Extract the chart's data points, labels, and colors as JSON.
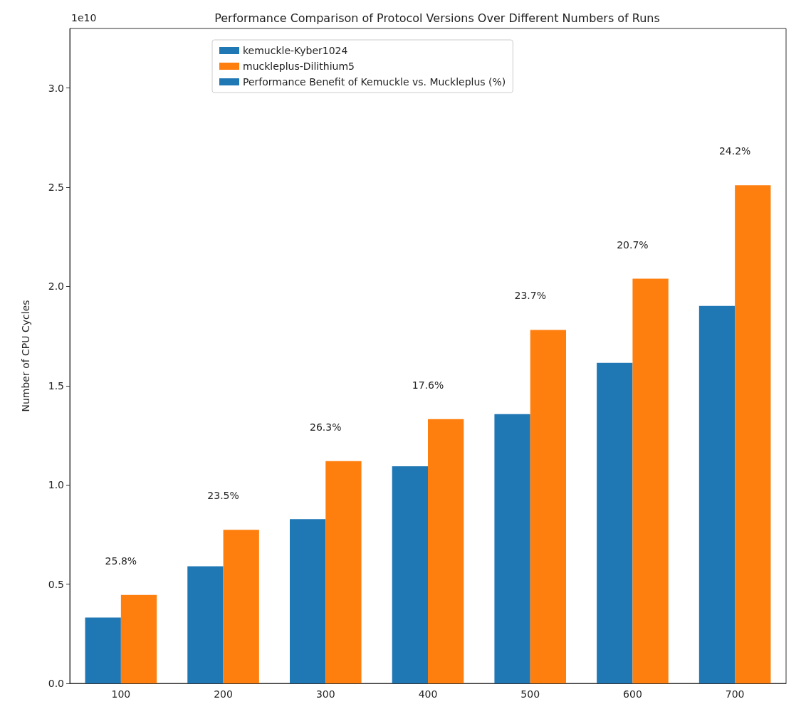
{
  "chart_data": {
    "type": "bar",
    "title": "Performance Comparison of Protocol Versions Over Different Numbers of Runs",
    "ylabel": "Number of CPU Cycles",
    "categories": [
      "100",
      "200",
      "300",
      "400",
      "500",
      "600",
      "700"
    ],
    "series": [
      {
        "name": "kemuckle-Kyber1024",
        "color": "#1f77b4",
        "values": [
          0.332,
          0.59,
          0.828,
          1.094,
          1.357,
          1.615,
          1.902
        ]
      },
      {
        "name": "muckleplus-Dilithium5",
        "color": "#ff7f0e",
        "values": [
          0.446,
          0.774,
          1.12,
          1.332,
          1.781,
          2.039,
          2.51
        ]
      },
      {
        "name": "Performance Benefit of Kemuckle vs. Muckleplus (%)",
        "color": "#1f77b4",
        "values": [
          null,
          null,
          null,
          null,
          null,
          null,
          null
        ]
      }
    ],
    "ylim": [
      0,
      3.3
    ],
    "yticks": [
      {
        "value": 0,
        "label": "0.0"
      },
      {
        "value": 0.5,
        "label": "0.5"
      },
      {
        "value": 1,
        "label": "1.0"
      },
      {
        "value": 1.5,
        "label": "1.5"
      },
      {
        "value": 2,
        "label": "2.0"
      },
      {
        "value": 2.5,
        "label": "2.5"
      },
      {
        "value": 3,
        "label": "3.0"
      }
    ],
    "annotations": [
      "1e10",
      {
        "text": "25.8%",
        "x": "100",
        "y": 0.446
      },
      {
        "text": "23.5%",
        "x": "200",
        "y": 0.774
      },
      {
        "text": "26.3%",
        "x": "300",
        "y": 1.12
      },
      {
        "text": "17.6%",
        "x": "400",
        "y": 1.332
      },
      {
        "text": "23.7%",
        "x": "500",
        "y": 1.781
      },
      {
        "text": "20.7%",
        "x": "600",
        "y": 2.039
      },
      {
        "text": "24.2%",
        "x": "700",
        "y": 2.51
      }
    ],
    "legend": "top",
    "grid": false
  }
}
